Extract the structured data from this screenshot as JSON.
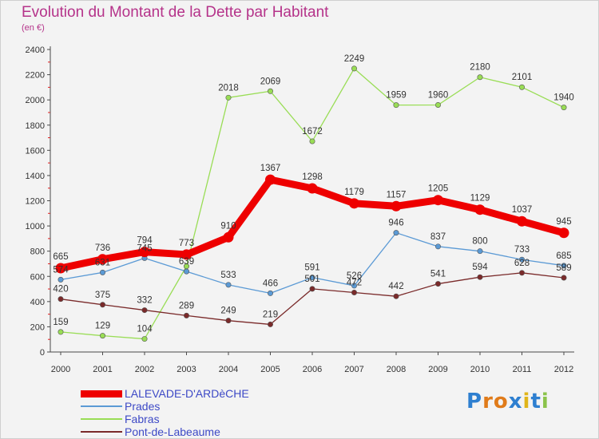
{
  "title": "Evolution du Montant de la Dette par Habitant",
  "subtitle": "(en €)",
  "logo_text": "Proxiti",
  "colors": {
    "title": "#b5338a",
    "legend_text": "#3d49c6",
    "axis": "#4a4a4a",
    "background": "#f3f3f3"
  },
  "chart_data": {
    "type": "line",
    "title": "Evolution du Montant de la Dette par Habitant",
    "subtitle": "(en €)",
    "xlabel": "",
    "ylabel": "",
    "x": [
      "2000",
      "2001",
      "2002",
      "2003",
      "2004",
      "2005",
      "2006",
      "2007",
      "2008",
      "2009",
      "2010",
      "2011",
      "2012"
    ],
    "ylim": [
      0,
      2400
    ],
    "yticks": [
      0,
      200,
      400,
      600,
      800,
      1000,
      1200,
      1400,
      1600,
      1800,
      2000,
      2200,
      2400
    ],
    "grid": false,
    "legend": "bottom-left",
    "series": [
      {
        "name": "LALEVADE-D'ARDèCHE",
        "color": "#ee0000",
        "emphasis": true,
        "values": [
          665,
          736,
          794,
          773,
          910,
          1367,
          1298,
          1179,
          1157,
          1205,
          1129,
          1037,
          945
        ],
        "labels": [
          "665",
          "736",
          "794",
          "773",
          "910",
          "1367",
          "1298",
          "1179",
          "1157",
          "1205",
          "1129",
          "1037",
          "945"
        ]
      },
      {
        "name": "Prades",
        "color": "#5b9ad5",
        "values": [
          574,
          631,
          745,
          639,
          533,
          466,
          591,
          526,
          946,
          837,
          800,
          733,
          685
        ],
        "labels": [
          "574",
          "631",
          "745",
          "639",
          "533",
          "466",
          "591",
          "526",
          "946",
          "837",
          "800",
          "733",
          "685"
        ]
      },
      {
        "name": "Fabras",
        "color": "#99dd55",
        "values": [
          159,
          129,
          104,
          680,
          2018,
          2069,
          1672,
          2249,
          1959,
          1960,
          2180,
          2101,
          1940
        ],
        "labels": [
          "159",
          "129",
          "104",
          "",
          "2018",
          "2069",
          "1672",
          "2249",
          "1959",
          "1960",
          "2180",
          "2101",
          "1940"
        ]
      },
      {
        "name": "Pont-de-Labeaume",
        "color": "#7a2a2a",
        "values": [
          420,
          375,
          332,
          289,
          249,
          219,
          501,
          472,
          442,
          541,
          594,
          628,
          589
        ],
        "labels": [
          "420",
          "375",
          "332",
          "289",
          "249",
          "219",
          "501",
          "472",
          "442",
          "541",
          "594",
          "628",
          "589"
        ]
      }
    ]
  }
}
